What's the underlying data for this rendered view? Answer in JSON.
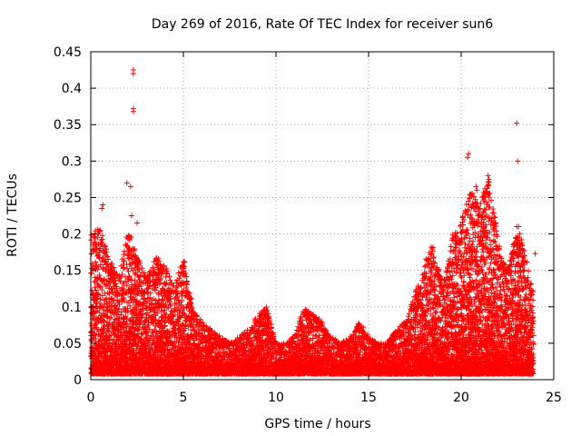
{
  "chart_data": {
    "type": "scatter",
    "title": "Day 269 of 2016, Rate Of TEC Index for receiver sun6",
    "xlabel": "GPS time / hours",
    "ylabel": "ROTI / TECUs",
    "xlim": [
      0,
      25
    ],
    "ylim": [
      0,
      0.45
    ],
    "x_ticks": [
      0,
      5,
      10,
      15,
      20,
      25
    ],
    "x_tick_labels": [
      "0",
      "5",
      "10",
      "15",
      "20",
      "25"
    ],
    "y_ticks": [
      0,
      0.05,
      0.1,
      0.15,
      0.2,
      0.25,
      0.3,
      0.35,
      0.4,
      0.45
    ],
    "y_tick_labels": [
      "0",
      "0.05",
      "0.1",
      "0.15",
      "0.2",
      "0.25",
      "0.3",
      "0.35",
      "0.4",
      "0.45"
    ],
    "grid": true,
    "marker": "+",
    "color": "#ff0000",
    "envelope": [
      {
        "x": 0.0,
        "y": 0.2
      },
      {
        "x": 0.5,
        "y": 0.21
      },
      {
        "x": 1.0,
        "y": 0.17
      },
      {
        "x": 1.5,
        "y": 0.14
      },
      {
        "x": 2.0,
        "y": 0.21
      },
      {
        "x": 2.5,
        "y": 0.17
      },
      {
        "x": 3.0,
        "y": 0.14
      },
      {
        "x": 3.5,
        "y": 0.17
      },
      {
        "x": 4.0,
        "y": 0.16
      },
      {
        "x": 4.5,
        "y": 0.13
      },
      {
        "x": 5.0,
        "y": 0.17
      },
      {
        "x": 5.5,
        "y": 0.1
      },
      {
        "x": 6.0,
        "y": 0.08
      },
      {
        "x": 6.5,
        "y": 0.07
      },
      {
        "x": 7.0,
        "y": 0.06
      },
      {
        "x": 7.5,
        "y": 0.05
      },
      {
        "x": 8.0,
        "y": 0.06
      },
      {
        "x": 8.5,
        "y": 0.07
      },
      {
        "x": 9.0,
        "y": 0.09
      },
      {
        "x": 9.5,
        "y": 0.1
      },
      {
        "x": 10.0,
        "y": 0.05
      },
      {
        "x": 10.5,
        "y": 0.05
      },
      {
        "x": 11.0,
        "y": 0.06
      },
      {
        "x": 11.5,
        "y": 0.1
      },
      {
        "x": 12.0,
        "y": 0.09
      },
      {
        "x": 12.5,
        "y": 0.08
      },
      {
        "x": 13.0,
        "y": 0.06
      },
      {
        "x": 13.5,
        "y": 0.05
      },
      {
        "x": 14.0,
        "y": 0.06
      },
      {
        "x": 14.5,
        "y": 0.08
      },
      {
        "x": 15.0,
        "y": 0.06
      },
      {
        "x": 15.5,
        "y": 0.05
      },
      {
        "x": 16.0,
        "y": 0.05
      },
      {
        "x": 16.5,
        "y": 0.07
      },
      {
        "x": 17.0,
        "y": 0.08
      },
      {
        "x": 17.5,
        "y": 0.12
      },
      {
        "x": 18.0,
        "y": 0.16
      },
      {
        "x": 18.5,
        "y": 0.19
      },
      {
        "x": 19.0,
        "y": 0.13
      },
      {
        "x": 19.5,
        "y": 0.2
      },
      {
        "x": 20.0,
        "y": 0.22
      },
      {
        "x": 20.5,
        "y": 0.26
      },
      {
        "x": 21.0,
        "y": 0.24
      },
      {
        "x": 21.5,
        "y": 0.28
      },
      {
        "x": 22.0,
        "y": 0.19
      },
      {
        "x": 22.5,
        "y": 0.15
      },
      {
        "x": 23.0,
        "y": 0.22
      },
      {
        "x": 23.5,
        "y": 0.17
      },
      {
        "x": 23.9,
        "y": 0.12
      }
    ],
    "outliers": [
      {
        "x": 2.3,
        "y": 0.425
      },
      {
        "x": 2.3,
        "y": 0.42
      },
      {
        "x": 2.3,
        "y": 0.372
      },
      {
        "x": 2.3,
        "y": 0.368
      },
      {
        "x": 2.15,
        "y": 0.265
      },
      {
        "x": 1.95,
        "y": 0.27
      },
      {
        "x": 0.65,
        "y": 0.24
      },
      {
        "x": 0.6,
        "y": 0.235
      },
      {
        "x": 2.2,
        "y": 0.225
      },
      {
        "x": 2.5,
        "y": 0.215
      },
      {
        "x": 20.4,
        "y": 0.31
      },
      {
        "x": 20.35,
        "y": 0.305
      },
      {
        "x": 20.8,
        "y": 0.265
      },
      {
        "x": 20.85,
        "y": 0.26
      },
      {
        "x": 21.45,
        "y": 0.28
      },
      {
        "x": 21.5,
        "y": 0.275
      },
      {
        "x": 23.0,
        "y": 0.352
      },
      {
        "x": 23.05,
        "y": 0.3
      },
      {
        "x": 23.1,
        "y": 0.21
      },
      {
        "x": 24.0,
        "y": 0.173
      }
    ]
  }
}
